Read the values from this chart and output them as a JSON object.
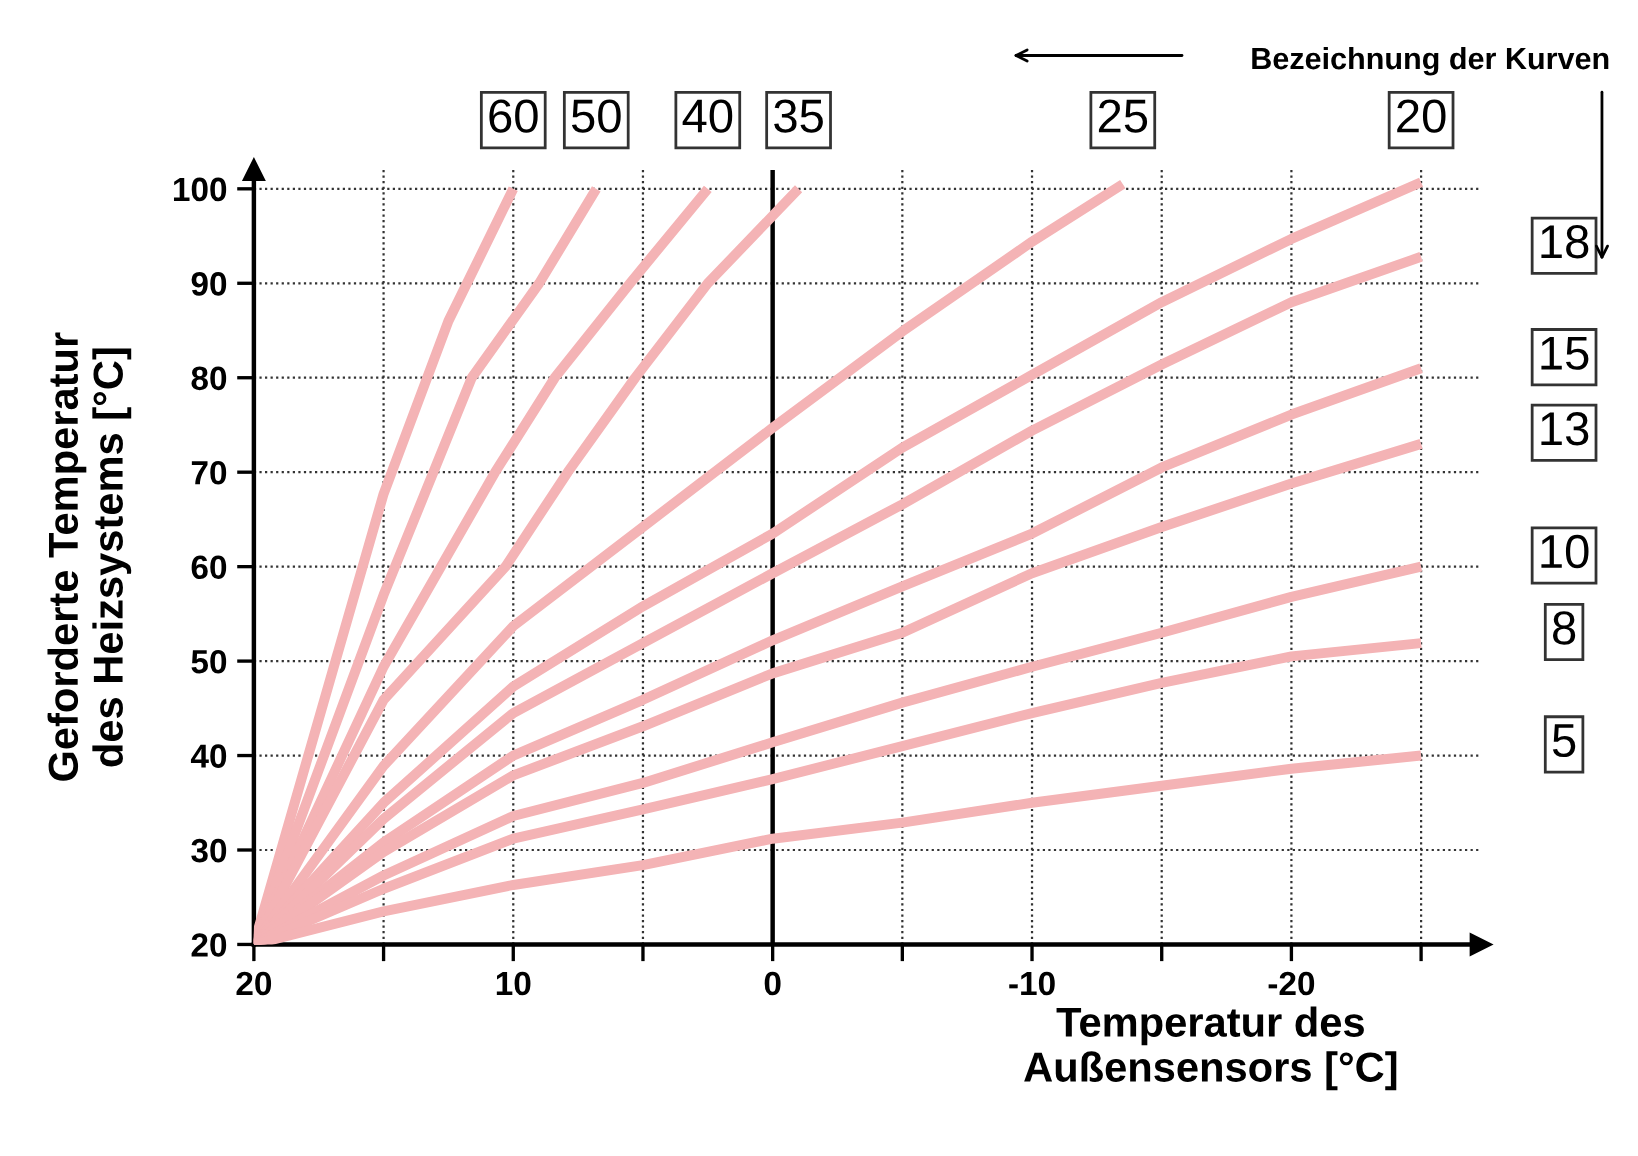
{
  "chart_data": {
    "type": "line",
    "xlabel": "Temperatur des\nAußensensors [°C]",
    "ylabel": "Geforderte Temperatur\ndes Heizsystems [°C]",
    "annotations": [
      "Bezeichnung der Kurven"
    ],
    "series": [
      {
        "name": "60",
        "color": "#f4b3b5",
        "x": [
          20,
          15,
          12.5,
          10
        ],
        "values": [
          20,
          67.7,
          86,
          100
        ]
      },
      {
        "name": "50",
        "color": "#f4b3b5",
        "x": [
          20,
          15,
          11.6,
          9,
          6.8
        ],
        "values": [
          20,
          57,
          80,
          90,
          100
        ]
      },
      {
        "name": "40",
        "color": "#f4b3b5",
        "x": [
          20,
          15,
          10.7,
          8.4,
          5.5,
          2.5
        ],
        "values": [
          20,
          49.4,
          70,
          80,
          90,
          100
        ]
      },
      {
        "name": "35",
        "color": "#f4b3b5",
        "x": [
          20,
          15,
          10.3,
          7.9,
          5.3,
          2.5,
          -1
        ],
        "values": [
          20,
          45.9,
          60,
          70,
          80,
          90,
          100
        ]
      },
      {
        "name": "25",
        "color": "#f4b3b5",
        "x": [
          20,
          15,
          10,
          5,
          0,
          -5,
          -10,
          -13.5
        ],
        "values": [
          20,
          38.9,
          53.7,
          64.2,
          74.7,
          84.9,
          94.4,
          100.5
        ]
      },
      {
        "name": "20",
        "color": "#f4b3b5",
        "x": [
          20,
          15,
          10,
          5,
          0,
          -5,
          -10,
          -15,
          -20,
          -25
        ],
        "values": [
          20,
          35,
          47.3,
          55.8,
          63.5,
          72.6,
          80.3,
          88,
          94.7,
          100.7
        ]
      },
      {
        "name": "18",
        "color": "#f4b3b5",
        "x": [
          20,
          15,
          10,
          5,
          0,
          -5,
          -10,
          -15,
          -20,
          -25
        ],
        "values": [
          20,
          33.3,
          44.5,
          51.9,
          59.3,
          66.6,
          74.4,
          81.4,
          88,
          92.8
        ]
      },
      {
        "name": "15",
        "color": "#f4b3b5",
        "x": [
          20,
          15,
          10,
          5,
          0,
          -5,
          -10,
          -15,
          -20,
          -25
        ],
        "values": [
          20,
          30.8,
          40,
          45.9,
          52.2,
          57.9,
          63.5,
          70.5,
          76.1,
          81
        ]
      },
      {
        "name": "13",
        "color": "#f4b3b5",
        "x": [
          20,
          15,
          10,
          5,
          0,
          -5,
          -10,
          -15,
          -20,
          -25
        ],
        "values": [
          20,
          29.8,
          37.9,
          43.1,
          48.7,
          53,
          59.3,
          64.2,
          68.8,
          73
        ]
      },
      {
        "name": "10",
        "color": "#f4b3b5",
        "x": [
          20,
          15,
          10,
          5,
          0,
          -5,
          -10,
          -15,
          -20,
          -25
        ],
        "values": [
          20,
          27.3,
          33.6,
          37.1,
          41.4,
          45.6,
          49.4,
          53,
          56.8,
          60
        ]
      },
      {
        "name": "8",
        "color": "#f4b3b5",
        "x": [
          20,
          15,
          10,
          5,
          0,
          -5,
          -10,
          -15,
          -20,
          -25
        ],
        "values": [
          20,
          25.9,
          31.2,
          34.3,
          37.5,
          41,
          44.5,
          47.7,
          50.5,
          51.9
        ]
      },
      {
        "name": "5",
        "color": "#f4b3b5",
        "x": [
          20,
          15,
          10,
          5,
          0,
          -5,
          -10,
          -15,
          -20,
          -25
        ],
        "values": [
          20,
          23.5,
          26.3,
          28.4,
          31.2,
          32.9,
          35,
          36.8,
          38.6,
          40
        ]
      }
    ],
    "xlim": [
      20,
      -27.3
    ],
    "ylim": [
      20,
      102
    ],
    "xticks": [
      20,
      {
        "value": 15,
        "label": null
      },
      10,
      {
        "value": 5,
        "label": null
      },
      0,
      {
        "value": -5,
        "label": null
      },
      -10,
      {
        "value": -15,
        "label": null
      },
      -20,
      {
        "value": -25,
        "label": null
      }
    ],
    "yticks": [
      20,
      30,
      40,
      50,
      60,
      70,
      80,
      90,
      100
    ],
    "ref_lines": [
      {
        "axis": "x",
        "value": 0,
        "label": null,
        "color": "#000000",
        "line_style": "solid"
      }
    ],
    "grid": true,
    "legend": false,
    "marker": "none",
    "line_style": "solid"
  }
}
